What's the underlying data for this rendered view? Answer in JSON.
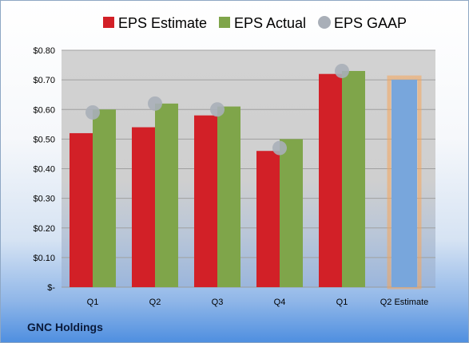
{
  "chart_data": {
    "type": "bar",
    "categories": [
      "Q1",
      "Q2",
      "Q3",
      "Q4",
      "Q1",
      "Q2 Estimate"
    ],
    "series": [
      {
        "name": "EPS Estimate",
        "values": [
          0.52,
          0.54,
          0.58,
          0.46,
          0.72,
          null
        ],
        "color": "#d22027"
      },
      {
        "name": "EPS Actual",
        "values": [
          0.6,
          0.62,
          0.61,
          0.5,
          0.73,
          null
        ],
        "color": "#7fa54a"
      },
      {
        "name": "EPS GAAP",
        "values": [
          0.59,
          0.62,
          0.6,
          0.47,
          0.73,
          null
        ],
        "color": "#a9afb8"
      }
    ],
    "forecast": {
      "category": "Q2 Estimate",
      "value": 0.7,
      "color": "#78a6dc",
      "outline": "#f5a55b"
    },
    "ylim": [
      0,
      0.8
    ],
    "yticks": [
      0,
      0.1,
      0.2,
      0.3,
      0.4,
      0.5,
      0.6,
      0.7,
      0.8
    ],
    "ytick_labels": [
      "$-",
      "$0.10",
      "$0.20",
      "$0.30",
      "$0.40",
      "$0.50",
      "$0.60",
      "$0.70",
      "$0.80"
    ],
    "grid": true,
    "legend": "top"
  },
  "company": "GNC Holdings"
}
